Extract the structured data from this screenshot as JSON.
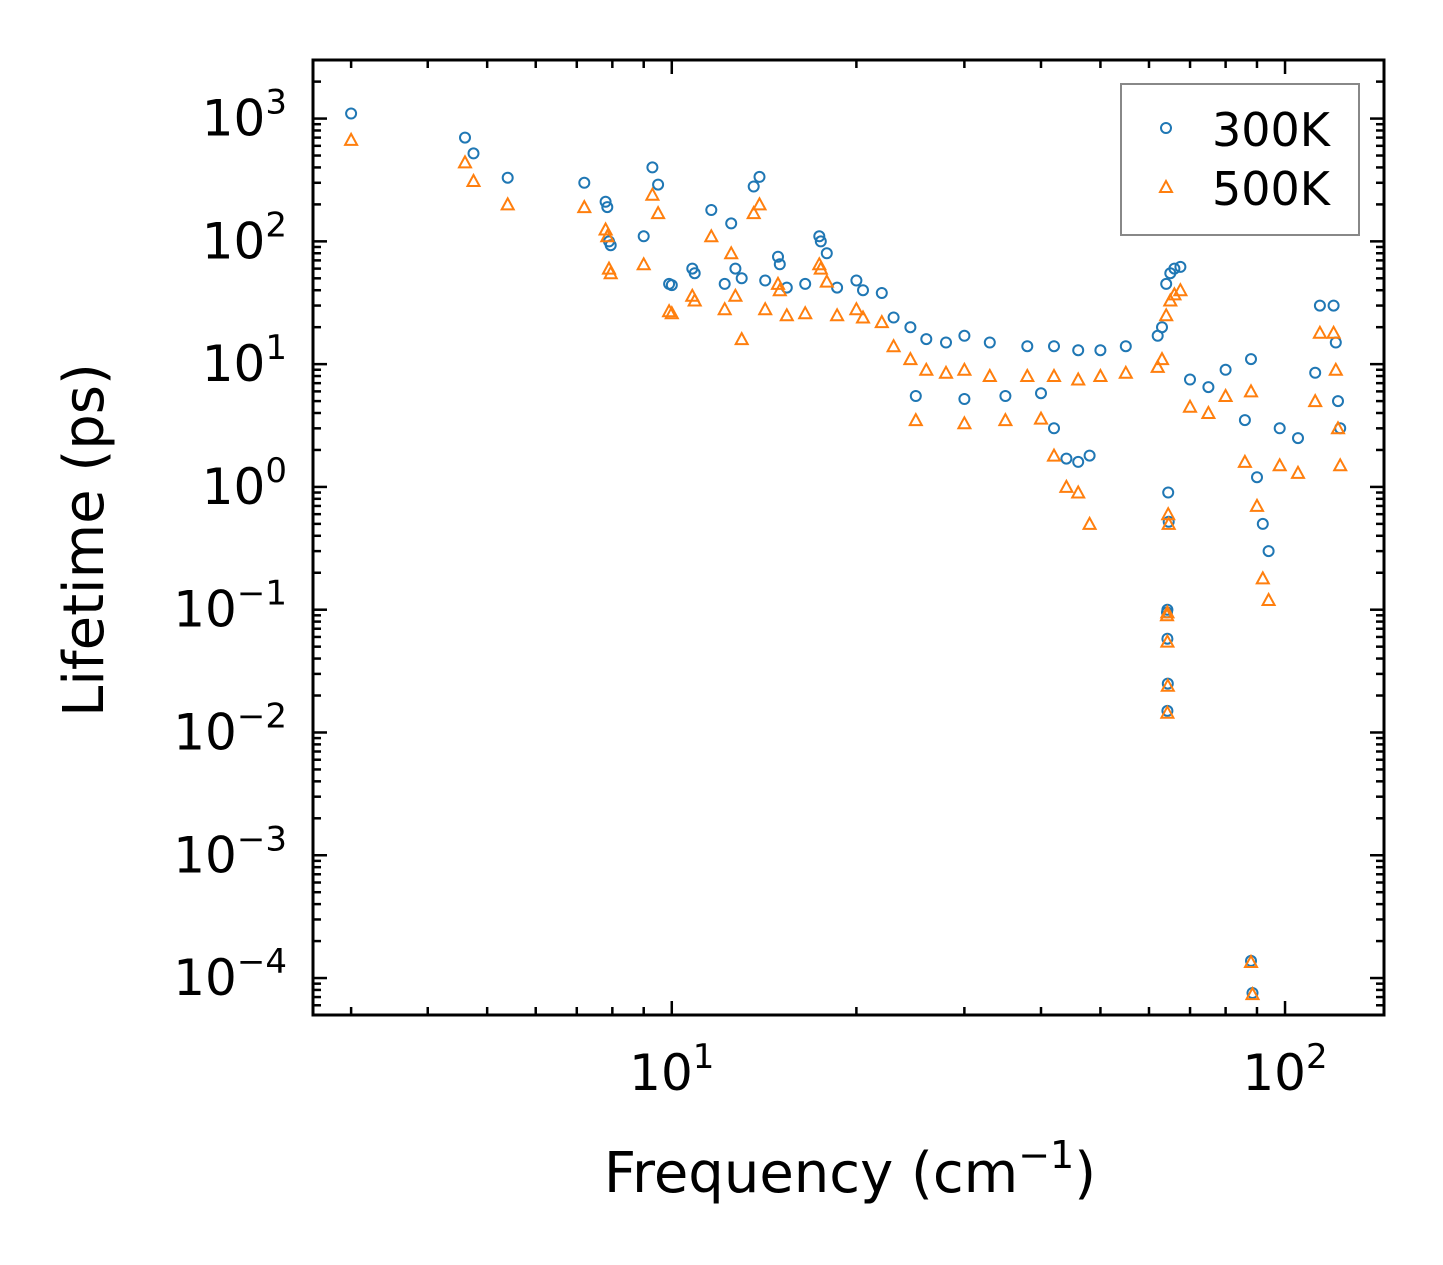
{
  "chart_data": {
    "type": "scatter",
    "xscale": "log",
    "yscale": "log",
    "xlim": [
      2.6,
      145
    ],
    "ylim": [
      5e-05,
      3000
    ],
    "xlabel": "Frequency (cm",
    "xlabel_sup": "−1",
    "xlabel_end": ")",
    "ylabel": "Lifetime (ps)",
    "x_ticks": [
      {
        "value": 10,
        "base": "10",
        "exp": "1"
      },
      {
        "value": 100,
        "base": "10",
        "exp": "2"
      }
    ],
    "y_ticks": [
      {
        "value": 1000,
        "base": "10",
        "exp": "3"
      },
      {
        "value": 100,
        "base": "10",
        "exp": "2"
      },
      {
        "value": 10,
        "base": "10",
        "exp": "1"
      },
      {
        "value": 1,
        "base": "10",
        "exp": "0"
      },
      {
        "value": 0.1,
        "base": "10",
        "exp": "−1"
      },
      {
        "value": 0.01,
        "base": "10",
        "exp": "−2"
      },
      {
        "value": 0.001,
        "base": "10",
        "exp": "−3"
      },
      {
        "value": 0.0001,
        "base": "10",
        "exp": "−4"
      }
    ],
    "legend_position": "top-right",
    "series": [
      {
        "name": "300K",
        "marker": "circle",
        "color": "#1f77b4",
        "points": [
          [
            3.0,
            1100
          ],
          [
            4.6,
            700
          ],
          [
            4.75,
            520
          ],
          [
            5.4,
            330
          ],
          [
            7.2,
            300
          ],
          [
            7.8,
            210
          ],
          [
            7.85,
            190
          ],
          [
            7.9,
            100
          ],
          [
            7.95,
            93
          ],
          [
            9.0,
            110
          ],
          [
            9.3,
            400
          ],
          [
            9.5,
            290
          ],
          [
            9.9,
            45
          ],
          [
            10.0,
            44
          ],
          [
            10.8,
            60
          ],
          [
            10.9,
            55
          ],
          [
            11.6,
            180
          ],
          [
            12.2,
            45
          ],
          [
            12.5,
            140
          ],
          [
            12.7,
            60
          ],
          [
            13.0,
            50
          ],
          [
            13.6,
            280
          ],
          [
            13.9,
            335
          ],
          [
            14.2,
            48
          ],
          [
            14.9,
            75
          ],
          [
            15.0,
            65
          ],
          [
            15.4,
            42
          ],
          [
            16.5,
            45
          ],
          [
            17.4,
            110
          ],
          [
            17.5,
            100
          ],
          [
            17.9,
            80
          ],
          [
            18.6,
            42
          ],
          [
            20.0,
            48
          ],
          [
            20.5,
            40
          ],
          [
            22.0,
            38
          ],
          [
            23.0,
            24
          ],
          [
            24.5,
            20
          ],
          [
            26.0,
            16
          ],
          [
            28.0,
            15
          ],
          [
            30.0,
            17
          ],
          [
            33.0,
            15
          ],
          [
            38.0,
            14
          ],
          [
            42.0,
            14
          ],
          [
            46.0,
            13
          ],
          [
            50.0,
            13
          ],
          [
            55.0,
            14
          ],
          [
            62.0,
            17
          ],
          [
            63.0,
            20
          ],
          [
            64.0,
            45
          ],
          [
            65.0,
            55
          ],
          [
            66.0,
            60
          ],
          [
            67.5,
            62
          ],
          [
            25.0,
            5.5
          ],
          [
            30.0,
            5.2
          ],
          [
            35.0,
            5.5
          ],
          [
            40.0,
            5.8
          ],
          [
            42.0,
            3.0
          ],
          [
            44.0,
            1.7
          ],
          [
            46.0,
            1.6
          ],
          [
            48.0,
            1.8
          ],
          [
            64.5,
            0.9
          ],
          [
            64.6,
            0.52
          ],
          [
            64.3,
            0.1
          ],
          [
            64.2,
            0.095
          ],
          [
            64.3,
            0.058
          ],
          [
            64.4,
            0.025
          ],
          [
            64.3,
            0.015
          ],
          [
            70.0,
            7.5
          ],
          [
            75.0,
            6.5
          ],
          [
            80.0,
            9.0
          ],
          [
            88.0,
            11.0
          ],
          [
            90.0,
            1.2
          ],
          [
            92.0,
            0.5
          ],
          [
            94.0,
            0.3
          ],
          [
            88.0,
            0.000138
          ],
          [
            88.5,
            7.55e-05
          ],
          [
            86.0,
            3.5
          ],
          [
            98.0,
            3.0
          ],
          [
            105.0,
            2.5
          ],
          [
            112.0,
            8.5
          ],
          [
            114.0,
            30.0
          ],
          [
            120.0,
            30.0
          ],
          [
            121.0,
            15.0
          ],
          [
            122.0,
            5.0
          ],
          [
            123.0,
            3.0
          ]
        ]
      },
      {
        "name": "500K",
        "marker": "triangle",
        "color": "#ff7f0e",
        "points": [
          [
            3.0,
            670
          ],
          [
            4.6,
            440
          ],
          [
            4.75,
            310
          ],
          [
            5.4,
            200
          ],
          [
            7.2,
            190
          ],
          [
            7.8,
            125
          ],
          [
            7.85,
            110
          ],
          [
            7.9,
            60
          ],
          [
            7.95,
            55
          ],
          [
            9.0,
            65
          ],
          [
            9.3,
            240
          ],
          [
            9.5,
            170
          ],
          [
            9.9,
            27
          ],
          [
            10.0,
            26
          ],
          [
            10.8,
            36
          ],
          [
            10.9,
            33
          ],
          [
            11.6,
            110
          ],
          [
            12.2,
            28
          ],
          [
            12.5,
            80
          ],
          [
            12.7,
            36
          ],
          [
            13.0,
            16
          ],
          [
            13.6,
            170
          ],
          [
            13.9,
            200
          ],
          [
            14.2,
            28
          ],
          [
            14.9,
            45
          ],
          [
            15.0,
            40
          ],
          [
            15.4,
            25
          ],
          [
            16.5,
            26
          ],
          [
            17.4,
            65
          ],
          [
            17.5,
            60
          ],
          [
            17.9,
            47
          ],
          [
            18.6,
            25
          ],
          [
            20.0,
            28
          ],
          [
            20.5,
            24
          ],
          [
            22.0,
            22
          ],
          [
            23.0,
            14
          ],
          [
            24.5,
            11
          ],
          [
            26.0,
            9.0
          ],
          [
            28.0,
            8.5
          ],
          [
            30.0,
            9.0
          ],
          [
            33.0,
            8.0
          ],
          [
            38.0,
            8.0
          ],
          [
            42.0,
            8.0
          ],
          [
            46.0,
            7.5
          ],
          [
            50.0,
            8.0
          ],
          [
            55.0,
            8.5
          ],
          [
            62.0,
            9.5
          ],
          [
            63.0,
            11.0
          ],
          [
            64.0,
            25.0
          ],
          [
            65.0,
            33.0
          ],
          [
            66.0,
            37.0
          ],
          [
            67.5,
            40.0
          ],
          [
            25.0,
            3.5
          ],
          [
            30.0,
            3.3
          ],
          [
            35.0,
            3.5
          ],
          [
            40.0,
            3.6
          ],
          [
            42.0,
            1.8
          ],
          [
            44.0,
            1.0
          ],
          [
            46.0,
            0.9
          ],
          [
            48.0,
            0.5
          ],
          [
            64.5,
            0.6
          ],
          [
            64.6,
            0.5
          ],
          [
            64.3,
            0.095
          ],
          [
            64.2,
            0.09
          ],
          [
            64.3,
            0.055
          ],
          [
            64.4,
            0.024
          ],
          [
            64.3,
            0.0145
          ],
          [
            70.0,
            4.5
          ],
          [
            75.0,
            4.0
          ],
          [
            80.0,
            5.5
          ],
          [
            88.0,
            6.0
          ],
          [
            90.0,
            0.7
          ],
          [
            92.0,
            0.18
          ],
          [
            94.0,
            0.12
          ],
          [
            88.0,
            0.000135
          ],
          [
            88.5,
            7.4e-05
          ],
          [
            86.0,
            1.6
          ],
          [
            98.0,
            1.5
          ],
          [
            105.0,
            1.3
          ],
          [
            112.0,
            5.0
          ],
          [
            114.0,
            18.0
          ],
          [
            120.0,
            18.0
          ],
          [
            121.0,
            9.0
          ],
          [
            122.0,
            3.0
          ],
          [
            123.0,
            1.5
          ]
        ]
      }
    ]
  }
}
